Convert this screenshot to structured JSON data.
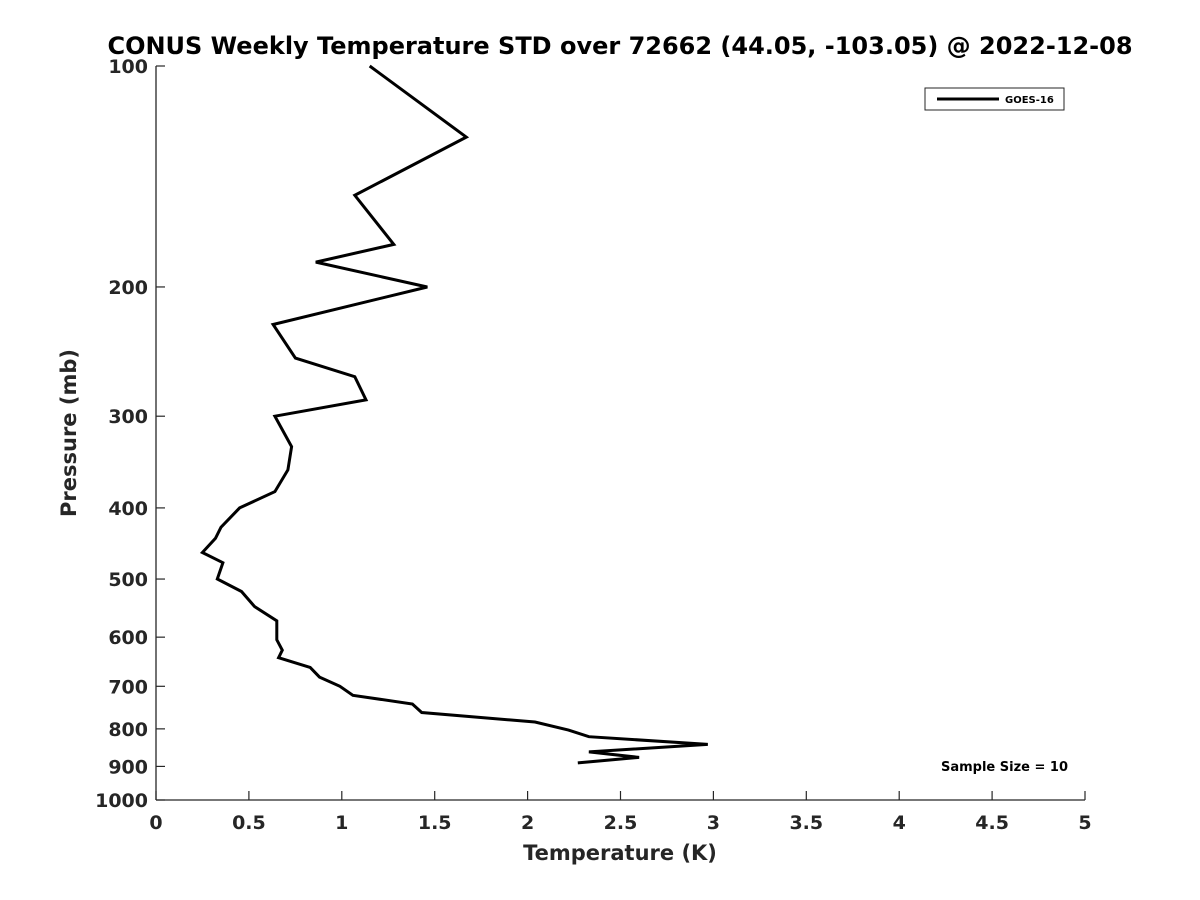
{
  "chart_data": {
    "type": "line",
    "title": "CONUS Weekly Temperature STD over 72662 (44.05, -103.05) @ 2022-12-08",
    "xlabel": "Temperature (K)",
    "ylabel": "Pressure (mb)",
    "xlim": [
      0,
      5
    ],
    "ylim": [
      100,
      1000
    ],
    "y_scale": "log",
    "y_reversed": true,
    "xticks": [
      0,
      0.5,
      1,
      1.5,
      2,
      2.5,
      3,
      3.5,
      4,
      4.5,
      5
    ],
    "xtick_labels": [
      "0",
      "0.5",
      "1",
      "1.5",
      "2",
      "2.5",
      "3",
      "3.5",
      "4",
      "4.5",
      "5"
    ],
    "yticks": [
      100,
      200,
      300,
      400,
      500,
      600,
      700,
      800,
      900,
      1000
    ],
    "ytick_labels": [
      "100",
      "200",
      "300",
      "400",
      "500",
      "600",
      "700",
      "800",
      "900",
      "1000"
    ],
    "grid": false,
    "legend_position": "top-right",
    "annotation": "Sample Size = 10",
    "series": [
      {
        "name": "GOES-16",
        "color": "#000000",
        "x": [
          1.15,
          1.67,
          1.07,
          1.28,
          0.86,
          1.46,
          0.63,
          0.75,
          1.07,
          1.13,
          0.64,
          0.73,
          0.71,
          0.64,
          0.45,
          0.35,
          0.32,
          0.25,
          0.36,
          0.33,
          0.46,
          0.53,
          0.65,
          0.65,
          0.68,
          0.66,
          0.83,
          0.88,
          0.99,
          1.06,
          1.38,
          1.43,
          2.04,
          2.22,
          2.33,
          2.97,
          2.33,
          2.6,
          2.27
        ],
        "y": [
          100,
          125,
          150,
          175,
          185,
          200,
          225,
          250,
          265,
          285,
          300,
          330,
          355,
          380,
          400,
          425,
          440,
          460,
          475,
          500,
          520,
          545,
          570,
          605,
          625,
          640,
          660,
          680,
          700,
          720,
          740,
          760,
          783,
          803,
          820,
          840,
          860,
          875,
          890
        ]
      }
    ]
  }
}
